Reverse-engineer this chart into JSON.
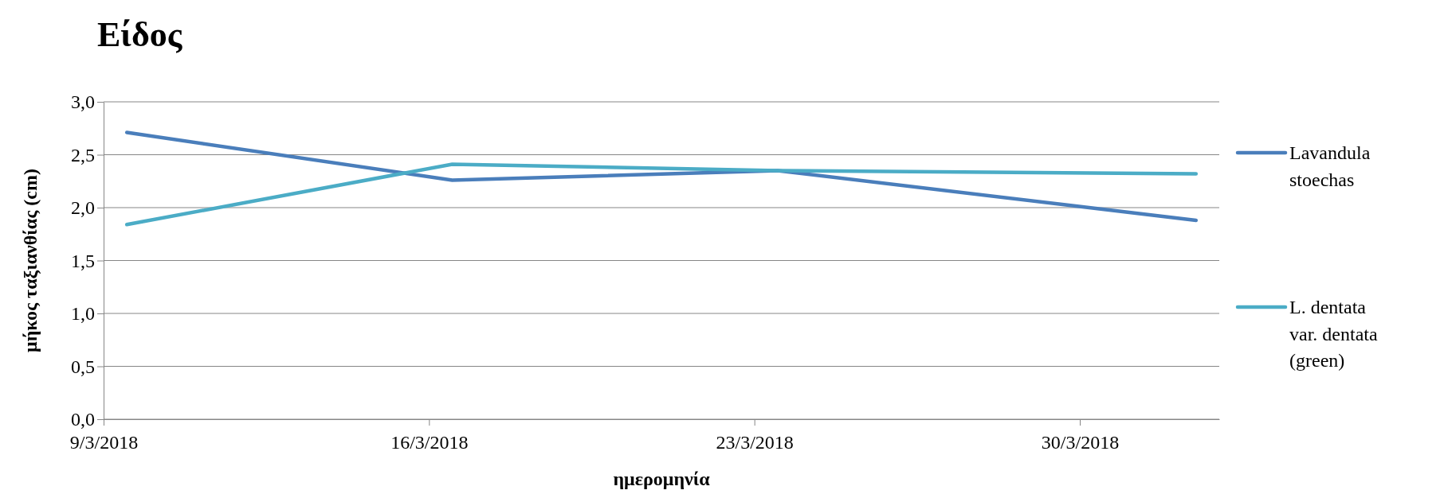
{
  "chart_data": {
    "type": "line",
    "title": "Είδος",
    "xlabel": "ημερομηνία",
    "ylabel": "μήκος ταξιανθίας (cm)",
    "x": [
      "2018-03-09T12:00",
      "2018-03-16T12:00",
      "2018-03-23T12:00",
      "2018-04-01T12:00"
    ],
    "series": [
      {
        "name": "Lavandula stoechas",
        "color": "#4a7ebb",
        "values": [
          2.71,
          2.26,
          2.35,
          1.88
        ]
      },
      {
        "name": "L. dentata var. dentata (green)",
        "color": "#4bacc6",
        "values": [
          1.84,
          2.41,
          2.35,
          2.32
        ]
      }
    ],
    "xlim": [
      "2018-03-09",
      "2018-04-02"
    ],
    "xticks": [
      {
        "value": "2018-03-09",
        "label": "9/3/2018"
      },
      {
        "value": "2018-03-16",
        "label": "16/3/2018"
      },
      {
        "value": "2018-03-23",
        "label": "23/3/2018"
      },
      {
        "value": "2018-03-30",
        "label": "30/3/2018"
      }
    ],
    "ylim": [
      0,
      3
    ],
    "yticks": [
      {
        "value": 0,
        "label": "0,0"
      },
      {
        "value": 0.5,
        "label": "0,5"
      },
      {
        "value": 1,
        "label": "1,0"
      },
      {
        "value": 1.5,
        "label": "1,5"
      },
      {
        "value": 2,
        "label": "2,0"
      },
      {
        "value": 2.5,
        "label": "2,5"
      },
      {
        "value": 3,
        "label": "3,0"
      }
    ],
    "grid": "y",
    "legend": "right",
    "marker": "none",
    "line_style": "solid"
  }
}
